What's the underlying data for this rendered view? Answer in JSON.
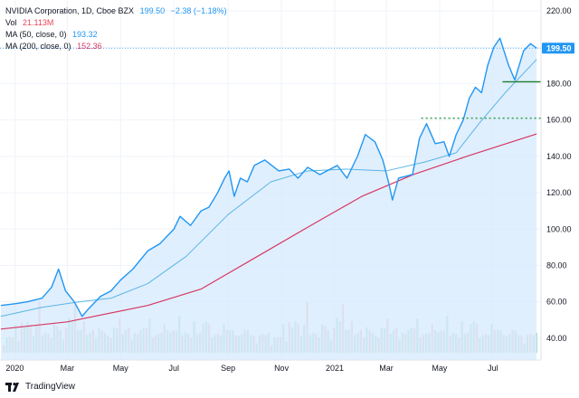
{
  "legend": {
    "title": "NVIDIA Corporation, 1D, Cboe BZX",
    "price": "199.50",
    "change": "−2.38 (−1.18%)",
    "vol_label": "Vol",
    "vol_value": "21.113M",
    "ma50_label": "MA (50, close, 0)",
    "ma50_value": "193.32",
    "ma200_label": "MA (200, close, 0)",
    "ma200_value": "152.36"
  },
  "footer": {
    "brand": "TradingView"
  },
  "colors": {
    "price_line": "#2196f3",
    "area_fill": "#d6e9fc",
    "ma50": "#5ab4e6",
    "ma200": "#d63864",
    "price_label_bg": "#2196f3",
    "support_line": "#1b7a2e",
    "green_dotted": "#2e9e4a",
    "volume_up": "#b4ddd3",
    "volume_down": "#f4c3c3",
    "grid": "#f0f3fa"
  },
  "chart_data": {
    "type": "line",
    "title": "NVIDIA Corporation, 1D, Cboe BZX",
    "xlabel": "",
    "ylabel": "",
    "x_ticks": [
      "2020",
      "Mar",
      "May",
      "Jul",
      "Sep",
      "Nov",
      "2021",
      "Mar",
      "May",
      "Jul"
    ],
    "y_ticks": [
      40,
      60,
      80,
      100,
      120,
      140,
      160,
      180,
      200,
      220
    ],
    "ylim": [
      28,
      226
    ],
    "grid": true,
    "x_range": [
      "2019-12-15",
      "2021-08-25"
    ],
    "last_price_label": "199.50",
    "price": {
      "name": "NVIDIA Corporation",
      "x": [
        "2019-12-16",
        "2020-01-02",
        "2020-01-15",
        "2020-02-01",
        "2020-02-12",
        "2020-02-20",
        "2020-02-28",
        "2020-03-09",
        "2020-03-18",
        "2020-03-25",
        "2020-04-08",
        "2020-04-20",
        "2020-05-01",
        "2020-05-15",
        "2020-06-01",
        "2020-06-15",
        "2020-07-01",
        "2020-07-08",
        "2020-07-20",
        "2020-08-01",
        "2020-08-10",
        "2020-08-20",
        "2020-08-28",
        "2020-09-02",
        "2020-09-08",
        "2020-09-15",
        "2020-09-23",
        "2020-10-01",
        "2020-10-13",
        "2020-10-29",
        "2020-11-10",
        "2020-11-20",
        "2020-12-01",
        "2020-12-15",
        "2021-01-04",
        "2021-01-15",
        "2021-01-27",
        "2021-02-05",
        "2021-02-16",
        "2021-02-25",
        "2021-03-04",
        "2021-03-08",
        "2021-03-15",
        "2021-03-31",
        "2021-04-08",
        "2021-04-16",
        "2021-04-26",
        "2021-05-06",
        "2021-05-12",
        "2021-05-20",
        "2021-05-28",
        "2021-06-04",
        "2021-06-11",
        "2021-06-18",
        "2021-06-25",
        "2021-07-02",
        "2021-07-09",
        "2021-07-19",
        "2021-07-26",
        "2021-08-05",
        "2021-08-13",
        "2021-08-20"
      ],
      "y": [
        58,
        59,
        60,
        62,
        68,
        78,
        66,
        60,
        52,
        56,
        63,
        66,
        72,
        78,
        88,
        92,
        100,
        107,
        102,
        110,
        112,
        120,
        128,
        132,
        118,
        128,
        126,
        135,
        138,
        132,
        133,
        128,
        134,
        130,
        135,
        128,
        140,
        152,
        148,
        138,
        125,
        116,
        128,
        130,
        150,
        158,
        147,
        148,
        140,
        152,
        160,
        172,
        178,
        175,
        190,
        200,
        205,
        190,
        182,
        198,
        202,
        199.5
      ]
    },
    "ma50": {
      "name": "MA (50, close, 0)",
      "x": [
        "2019-12-16",
        "2020-02-01",
        "2020-03-15",
        "2020-04-20",
        "2020-06-01",
        "2020-07-15",
        "2020-09-01",
        "2020-10-20",
        "2020-12-01",
        "2021-01-15",
        "2021-03-01",
        "2021-04-15",
        "2021-05-20",
        "2021-06-15",
        "2021-07-15",
        "2021-08-20"
      ],
      "y": [
        52,
        57,
        60,
        62,
        70,
        85,
        108,
        126,
        132,
        133,
        132,
        137,
        142,
        158,
        175,
        193.32
      ]
    },
    "ma200": {
      "name": "MA (200, close, 0)",
      "x": [
        "2019-12-16",
        "2020-03-01",
        "2020-06-01",
        "2020-08-01",
        "2020-10-01",
        "2020-12-01",
        "2021-02-01",
        "2021-04-01",
        "2021-06-01",
        "2021-08-20"
      ],
      "y": [
        45,
        49,
        58,
        67,
        84,
        101,
        118,
        130,
        140,
        152.36
      ]
    },
    "support_line": {
      "y": 181,
      "x_start": "2021-07-12",
      "x_end": "2021-08-25"
    },
    "dotted_level": {
      "y": 161,
      "x_start": "2021-04-10",
      "x_end": "2021-08-25"
    },
    "volume": {
      "name": "Vol",
      "note": "relative heights 0-1",
      "values": [
        0.2,
        0.3,
        0.25,
        0.35,
        0.5,
        0.3,
        0.6,
        0.4,
        0.7,
        0.5,
        0.45,
        0.55,
        0.8,
        0.4,
        0.35,
        0.5,
        0.3,
        0.45,
        0.6,
        0.4,
        0.35,
        0.5,
        0.55,
        0.7,
        0.85,
        0.6,
        0.45,
        0.5,
        0.4,
        0.35,
        0.6,
        0.3,
        0.4,
        0.5,
        0.35,
        0.45,
        0.3,
        0.4,
        0.55,
        0.6,
        0.5,
        0.45,
        0.4,
        0.3,
        0.35,
        0.5,
        0.45,
        0.4,
        0.55,
        0.6,
        0.4,
        0.35,
        0.3,
        0.45,
        0.5,
        0.6,
        0.4,
        0.35,
        0.5,
        0.65,
        0.45,
        0.4,
        0.3,
        0.35,
        0.55,
        0.5,
        0.4,
        0.45,
        0.7,
        0.5,
        0.4,
        0.35,
        0.3,
        0.4,
        0.5,
        0.6,
        0.45,
        0.35,
        0.4,
        0.3,
        0.5,
        0.45,
        0.35,
        0.4,
        0.3,
        0.25,
        0.35,
        0.3,
        0.4,
        0.35
      ]
    }
  }
}
